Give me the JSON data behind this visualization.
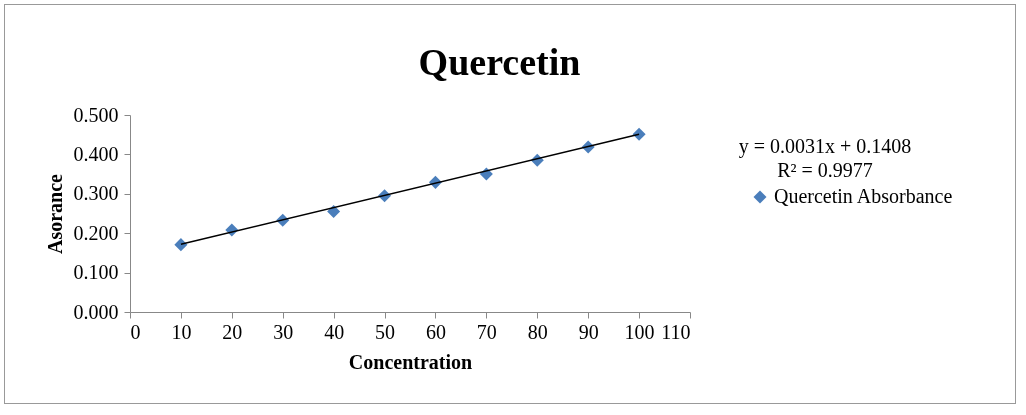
{
  "chart_data": {
    "type": "scatter",
    "title": "Quercetin",
    "xlabel": "Concentration",
    "ylabel": "Asorance",
    "xlim": [
      0,
      110
    ],
    "xticks": [
      0,
      10,
      20,
      30,
      40,
      50,
      60,
      70,
      80,
      90,
      100,
      110
    ],
    "ylim": [
      0,
      0.5
    ],
    "yticks": [
      {
        "value": 0,
        "label": "0.000"
      },
      {
        "value": 0.1,
        "label": "0.100"
      },
      {
        "value": 0.2,
        "label": "0.200"
      },
      {
        "value": 0.3,
        "label": "0.300"
      },
      {
        "value": 0.4,
        "label": "0.400"
      },
      {
        "value": 0.5,
        "label": "0.500"
      }
    ],
    "grid": false,
    "legend": "right",
    "marker": "diamond",
    "annotations": [
      "y = 0.0031x + 0.1408",
      "R² = 0.9977"
    ],
    "series": [
      {
        "name": "Quercetin Absorbance",
        "color": "#4a7ebb",
        "x": [
          10,
          20,
          30,
          40,
          50,
          60,
          70,
          80,
          90,
          100
        ],
        "values": [
          0.171,
          0.208,
          0.233,
          0.255,
          0.295,
          0.329,
          0.35,
          0.385,
          0.419,
          0.451
        ]
      },
      {
        "type": "line",
        "color": "#000000",
        "marker": "none",
        "line_style": "solid",
        "x": [
          10,
          100
        ],
        "values": [
          0.172,
          0.451
        ]
      }
    ]
  }
}
